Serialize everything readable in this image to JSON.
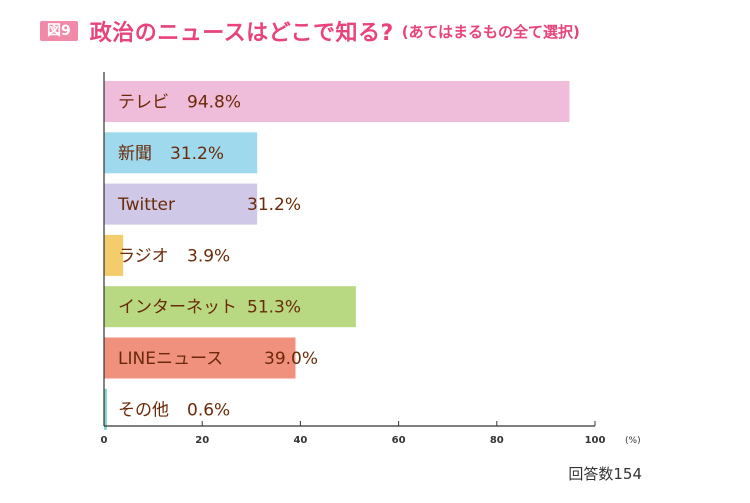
{
  "header": {
    "badge": "図9",
    "title": "政治のニュースはどこで知る?",
    "subtitle": "(あてはまるもの全て選択)"
  },
  "footnote": "回答数154",
  "chart_data": {
    "type": "bar",
    "orientation": "horizontal",
    "categories": [
      "テレビ",
      "新聞",
      "Twitter",
      "ラジオ",
      "インターネット",
      "LINEニュース",
      "その他"
    ],
    "values": [
      94.8,
      31.2,
      31.2,
      3.9,
      51.3,
      39.0,
      0.6
    ],
    "value_labels": [
      "94.8%",
      "31.2%",
      "31.2%",
      "3.9%",
      "51.3%",
      "39.0%",
      "0.6%"
    ],
    "colors": [
      "#efbcd9",
      "#9fd9ee",
      "#cfc8e6",
      "#f3cc6b",
      "#b8d982",
      "#f0917e",
      "#86d4cf"
    ],
    "xlim": [
      0,
      100
    ],
    "xticks": [
      "0",
      "20",
      "40",
      "60",
      "80",
      "100"
    ],
    "x_unit": "(%)",
    "grid": false
  }
}
